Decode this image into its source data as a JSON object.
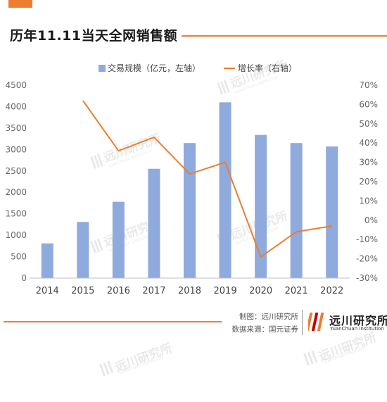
{
  "title": "历年11.11当天全网销售额",
  "accent_color": "#ED7D31",
  "bar_color": "#8FAADC",
  "line_color": "#ED7D31",
  "credits": {
    "made_by": "制图：远川研究所",
    "source": "数据来源：国元证券"
  },
  "logo": {
    "name": "远川研究所",
    "name_en": "YuanChuan Institution",
    "icon": "logo-mark-icon"
  },
  "watermark": {
    "name": "远川研究所",
    "name_en": "YuanChuan Institution"
  },
  "chart_data": {
    "type": "bar",
    "categories": [
      "2014",
      "2015",
      "2016",
      "2017",
      "2018",
      "2019",
      "2020",
      "2021",
      "2022"
    ],
    "series": [
      {
        "name": "交易规模（亿元，左轴）",
        "type": "bar",
        "axis": "left",
        "values": [
          810,
          1310,
          1780,
          2550,
          3150,
          4100,
          3340,
          3150,
          3070
        ]
      },
      {
        "name": "增长率（右轴）",
        "type": "line",
        "axis": "right",
        "values": [
          null,
          62,
          36,
          43,
          24,
          30,
          -19,
          -6,
          -3
        ]
      }
    ],
    "y_left": {
      "min": 0,
      "max": 4500,
      "ticks": [
        "0",
        "500",
        "1000",
        "1500",
        "2000",
        "2500",
        "3000",
        "3500",
        "4000",
        "4500"
      ]
    },
    "y_right": {
      "min": -30,
      "max": 70,
      "ticks": [
        "-30%",
        "-20%",
        "-10%",
        "0%",
        "10%",
        "20%",
        "30%",
        "40%",
        "50%",
        "60%",
        "70%"
      ]
    },
    "legend": "top",
    "grid": false
  }
}
